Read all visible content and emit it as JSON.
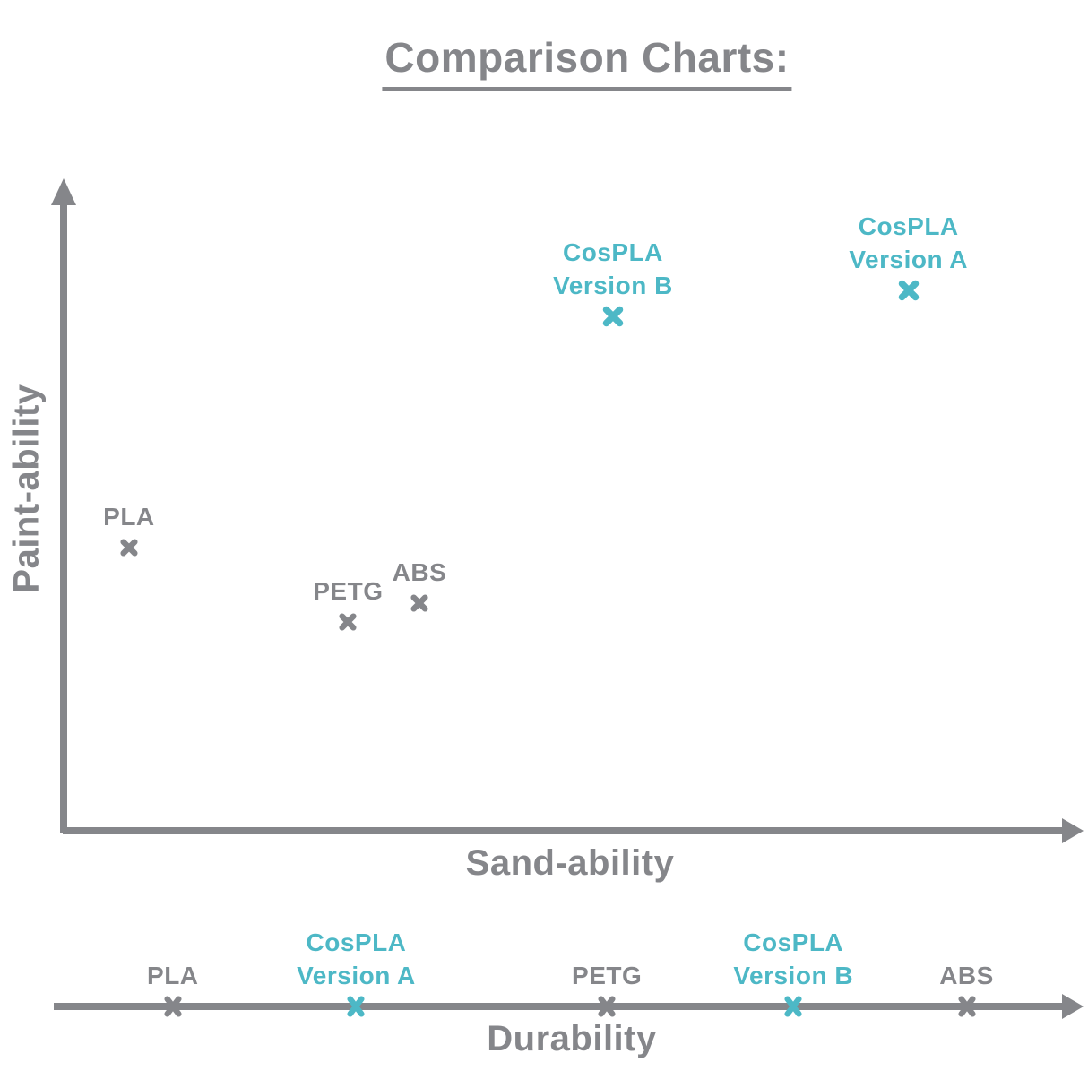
{
  "page": {
    "title": "Comparison Charts:"
  },
  "colors": {
    "gray": "#85868A",
    "teal": "#4DB8C6",
    "background": "#FFFFFF"
  },
  "chart_data": [
    {
      "type": "scatter",
      "title": "Comparison Charts:",
      "xlabel": "Sand-ability",
      "ylabel": "Paint-ability",
      "x_range": [
        0,
        100
      ],
      "y_range": [
        0,
        100
      ],
      "grid": false,
      "legend": "none",
      "axes_style": "arrow-tipped axes, no ticks, no numeric scale, X-shaped markers with labels above",
      "series": [
        {
          "name": "standard-filaments",
          "color": "#85868A",
          "points": [
            {
              "label": "PLA",
              "x": 6.5,
              "y": 43.5
            },
            {
              "label": "PETG",
              "x": 28,
              "y": 32
            },
            {
              "label": "ABS",
              "x": 35,
              "y": 35
            }
          ]
        },
        {
          "name": "cospla-filaments",
          "color": "#4DB8C6",
          "points": [
            {
              "label": "CosPLA\nVersion B",
              "x": 54,
              "y": 79
            },
            {
              "label": "CosPLA\nVersion A",
              "x": 83,
              "y": 83
            }
          ]
        }
      ]
    },
    {
      "type": "number-line",
      "xlabel": "Durability",
      "x_range": [
        0,
        100
      ],
      "grid": false,
      "axes_style": "single horizontal arrow-tipped line, X-shaped tick markers with labels above",
      "points": [
        {
          "label": "PLA",
          "x": 10.8,
          "color": "#85868A"
        },
        {
          "label": "CosPLA\nVersion A",
          "x": 28.8,
          "color": "#4DB8C6"
        },
        {
          "label": "PETG",
          "x": 53.4,
          "color": "#85868A"
        },
        {
          "label": "CosPLA\nVersion B",
          "x": 71.7,
          "color": "#4DB8C6"
        },
        {
          "label": "ABS",
          "x": 88.7,
          "color": "#85868A"
        }
      ]
    }
  ]
}
